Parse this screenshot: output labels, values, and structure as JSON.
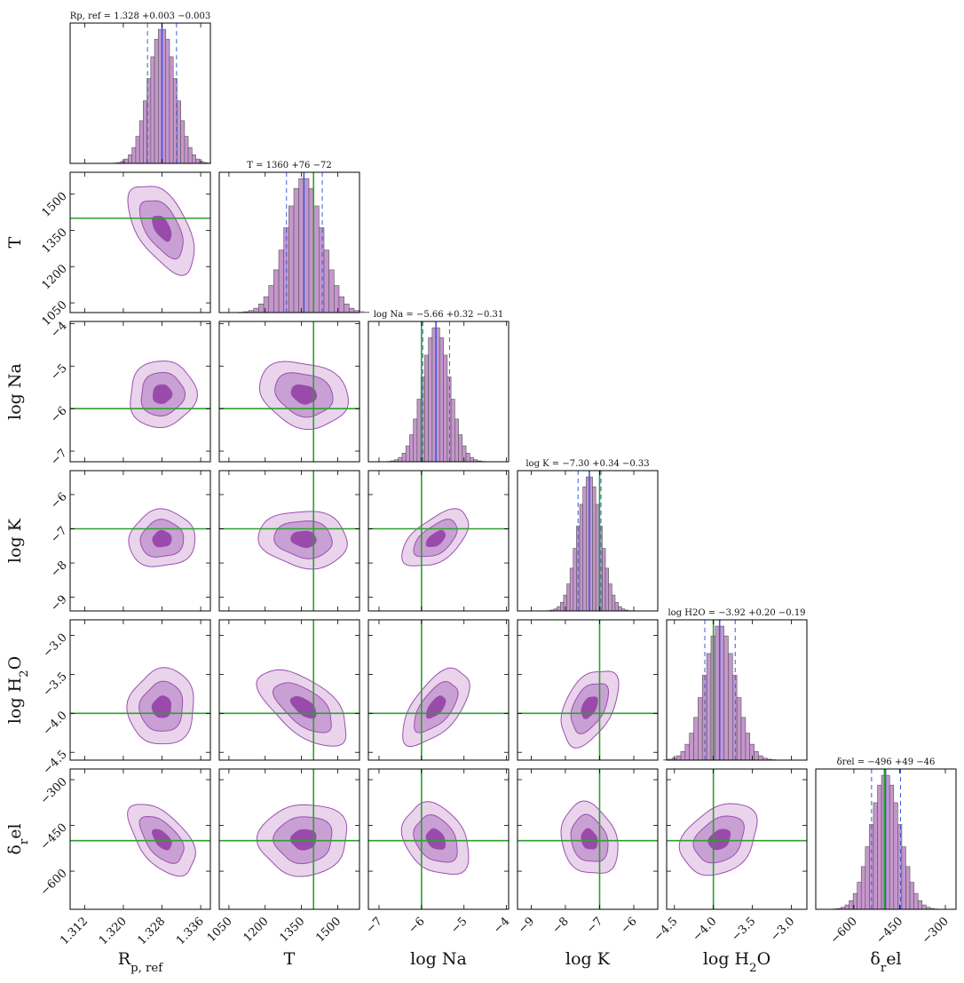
{
  "colors": {
    "fill": "#c596cc",
    "hist_edge": "#555555",
    "contour_edge": "#9b4fb0",
    "contour_levels": [
      "#e9d4ec",
      "#c9a0d3",
      "#9a4aab"
    ],
    "truth": "#2ca02c",
    "median": "#3b5bd9"
  },
  "chart_data": {
    "type": "corner",
    "grid": false,
    "legend": "none",
    "parameters": [
      {
        "key": "rp",
        "label": "R_{p, ref}",
        "label_text": "Rp, ref",
        "range": [
          1.309,
          1.338
        ],
        "ticks": [
          1.312,
          1.32,
          1.328,
          1.336
        ],
        "tick_labels": [
          "1.312",
          "1.320",
          "1.328",
          "1.336"
        ],
        "median": 1.328,
        "err_plus": 0.003,
        "err_minus": 0.003,
        "title_text": "Rp, ref = 1.328 +0.003 −0.003",
        "truth": null,
        "sigma": 0.0028
      },
      {
        "key": "T",
        "label": "T",
        "label_text": "T",
        "range": [
          1010,
          1590
        ],
        "ticks": [
          1050,
          1200,
          1350,
          1500
        ],
        "tick_labels": [
          "1050",
          "1200",
          "1350",
          "1500"
        ],
        "median": 1360,
        "err_plus": 76,
        "err_minus": 72,
        "title_text": "T = 1360 +76 −72",
        "truth": 1400,
        "sigma": 75
      },
      {
        "key": "na",
        "label": "log Na",
        "label_text": "log Na",
        "range": [
          -7.25,
          -3.95
        ],
        "ticks": [
          -7,
          -6,
          -5,
          -4
        ],
        "tick_labels": [
          "−7",
          "−6",
          "−5",
          "−4"
        ],
        "median": -5.66,
        "err_plus": 0.32,
        "err_minus": 0.31,
        "title_text": "log Na = −5.66 +0.32 −0.31",
        "truth": -6.0,
        "sigma": 0.32
      },
      {
        "key": "k",
        "label": "log K",
        "label_text": "log K",
        "range": [
          -9.4,
          -5.3
        ],
        "ticks": [
          -9,
          -8,
          -7,
          -6
        ],
        "tick_labels": [
          "−9",
          "−8",
          "−7",
          "−6"
        ],
        "median": -7.3,
        "err_plus": 0.34,
        "err_minus": 0.33,
        "title_text": "log K = −7.30 +0.34 −0.33",
        "truth": -7.0,
        "sigma": 0.34
      },
      {
        "key": "h2o",
        "label": "log H_2O",
        "label_text": "log H2O",
        "range": [
          -4.6,
          -2.8
        ],
        "ticks": [
          -4.5,
          -4.0,
          -3.5,
          -3.0
        ],
        "tick_labels": [
          "−4.5",
          "−4.0",
          "−3.5",
          "−3.0"
        ],
        "median": -3.92,
        "err_plus": 0.2,
        "err_minus": 0.19,
        "title_text": "log H2O = −3.92 +0.20 −0.19",
        "truth": -4.0,
        "sigma": 0.2
      },
      {
        "key": "drel",
        "label": "δ_rel",
        "label_text": "δrel",
        "range": [
          -725,
          -265
        ],
        "ticks": [
          -600,
          -450,
          -300
        ],
        "tick_labels": [
          "−600",
          "−450",
          "−300"
        ],
        "median": -496,
        "err_plus": 49,
        "err_minus": 46,
        "title_text": "δrel = −496 +49 −46",
        "truth": -500,
        "sigma": 48
      }
    ],
    "correlations": [
      [
        1.0,
        -0.55,
        0.05,
        0.05,
        0.05,
        -0.55
      ],
      [
        -0.55,
        1.0,
        -0.2,
        -0.1,
        -0.6,
        0.05
      ],
      [
        0.05,
        -0.2,
        1.0,
        0.55,
        0.6,
        -0.3
      ],
      [
        0.05,
        -0.1,
        0.55,
        1.0,
        0.45,
        -0.2
      ],
      [
        0.05,
        -0.6,
        0.6,
        0.45,
        1.0,
        0.3
      ],
      [
        -0.55,
        0.05,
        -0.3,
        -0.2,
        0.3,
        1.0
      ]
    ]
  }
}
